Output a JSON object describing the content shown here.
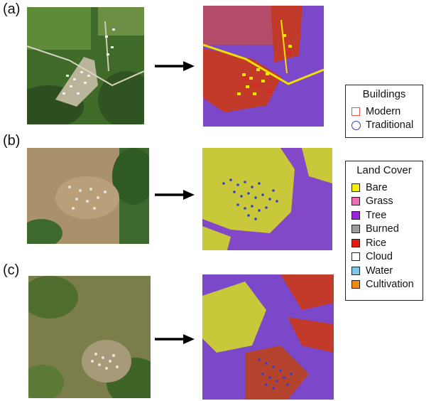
{
  "panels": [
    {
      "label": "(a)"
    },
    {
      "label": "(b)"
    },
    {
      "label": "(c)"
    }
  ],
  "buildings_legend": {
    "title": "Buildings",
    "items": [
      {
        "label": "Modern",
        "color": "#e8504a",
        "shape": "square-outline"
      },
      {
        "label": "Traditional",
        "color": "#2e3fd6",
        "shape": "circle-outline"
      }
    ]
  },
  "landcover_legend": {
    "title": "Land Cover",
    "items": [
      {
        "label": "Bare",
        "color": "#f4f000"
      },
      {
        "label": "Grass",
        "color": "#f06bb0"
      },
      {
        "label": "Tree",
        "color": "#9a22e0"
      },
      {
        "label": "Burned",
        "color": "#9c9c9c"
      },
      {
        "label": "Rice",
        "color": "#e81a10"
      },
      {
        "label": "Cloud",
        "color": "#ffffff"
      },
      {
        "label": "Water",
        "color": "#7ec8ea"
      },
      {
        "label": "Cultivation",
        "color": "#f08a10"
      }
    ]
  }
}
